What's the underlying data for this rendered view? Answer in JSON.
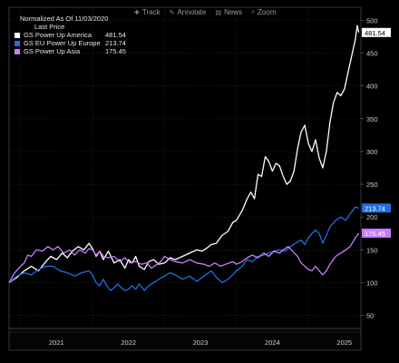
{
  "toolbar": {
    "items": [
      {
        "label": "Track",
        "icon": "crosshair-icon",
        "glyph": "✚"
      },
      {
        "label": "Annotate",
        "icon": "annotate-icon",
        "glyph": "✎"
      },
      {
        "label": "News",
        "icon": "news-icon",
        "glyph": "▤"
      },
      {
        "label": "Zoom",
        "icon": "zoom-icon",
        "glyph": "⌕"
      }
    ]
  },
  "colors": {
    "america": "#ffffff",
    "europe": "#1f6fe0",
    "asia": "#c77dff",
    "background": "#000000",
    "grid": "#3a3a3a",
    "axis_text": "#cfcfcf"
  },
  "chart_data": {
    "type": "line",
    "title": "Normalized As Of 11/03/2020",
    "subtitle": "Last Price",
    "legend_placement": "top-left",
    "grid": true,
    "y_axis_side": "right",
    "ylim": [
      30,
      520
    ],
    "yticks": [
      50,
      100,
      150,
      200,
      250,
      300,
      350,
      400,
      450,
      500
    ],
    "xlim": [
      2020.84,
      2025.73
    ],
    "x_ticks": [
      {
        "label": "2021",
        "year": 2021.5
      },
      {
        "label": "2022",
        "year": 2022.5
      },
      {
        "label": "2023",
        "year": 2023.5
      },
      {
        "label": "2024",
        "year": 2024.5
      },
      {
        "label": "2025",
        "year": 2025.5
      }
    ],
    "x_boundaries": [
      2021.0,
      2022.0,
      2023.0,
      2024.0,
      2025.0
    ],
    "series": [
      {
        "name": "GS Power Up America",
        "last": "481.54",
        "color": "#ffffff",
        "points": [
          [
            2020.84,
            100
          ],
          [
            2020.95,
            108
          ],
          [
            2021.05,
            118
          ],
          [
            2021.15,
            125
          ],
          [
            2021.25,
            118
          ],
          [
            2021.35,
            132
          ],
          [
            2021.42,
            140
          ],
          [
            2021.5,
            135
          ],
          [
            2021.58,
            145
          ],
          [
            2021.65,
            138
          ],
          [
            2021.72,
            148
          ],
          [
            2021.8,
            155
          ],
          [
            2021.88,
            150
          ],
          [
            2021.95,
            160
          ],
          [
            2022.0,
            152
          ],
          [
            2022.05,
            140
          ],
          [
            2022.1,
            148
          ],
          [
            2022.15,
            135
          ],
          [
            2022.22,
            148
          ],
          [
            2022.3,
            130
          ],
          [
            2022.38,
            135
          ],
          [
            2022.45,
            122
          ],
          [
            2022.5,
            135
          ],
          [
            2022.55,
            130
          ],
          [
            2022.6,
            140
          ],
          [
            2022.65,
            125
          ],
          [
            2022.72,
            120
          ],
          [
            2022.78,
            132
          ],
          [
            2022.85,
            135
          ],
          [
            2022.92,
            128
          ],
          [
            2023.0,
            130
          ],
          [
            2023.08,
            138
          ],
          [
            2023.15,
            135
          ],
          [
            2023.25,
            140
          ],
          [
            2023.35,
            145
          ],
          [
            2023.45,
            150
          ],
          [
            2023.52,
            148
          ],
          [
            2023.58,
            152
          ],
          [
            2023.65,
            158
          ],
          [
            2023.72,
            160
          ],
          [
            2023.8,
            172
          ],
          [
            2023.88,
            178
          ],
          [
            2023.95,
            192
          ],
          [
            2024.0,
            195
          ],
          [
            2024.08,
            210
          ],
          [
            2024.15,
            228
          ],
          [
            2024.2,
            238
          ],
          [
            2024.25,
            228
          ],
          [
            2024.3,
            265
          ],
          [
            2024.35,
            262
          ],
          [
            2024.4,
            292
          ],
          [
            2024.45,
            285
          ],
          [
            2024.5,
            270
          ],
          [
            2024.55,
            282
          ],
          [
            2024.6,
            278
          ],
          [
            2024.65,
            262
          ],
          [
            2024.7,
            250
          ],
          [
            2024.75,
            255
          ],
          [
            2024.8,
            270
          ],
          [
            2024.85,
            305
          ],
          [
            2024.9,
            330
          ],
          [
            2024.95,
            340
          ],
          [
            2025.0,
            312
          ],
          [
            2025.05,
            300
          ],
          [
            2025.1,
            318
          ],
          [
            2025.15,
            290
          ],
          [
            2025.2,
            275
          ],
          [
            2025.25,
            300
          ],
          [
            2025.3,
            345
          ],
          [
            2025.35,
            375
          ],
          [
            2025.4,
            390
          ],
          [
            2025.45,
            385
          ],
          [
            2025.5,
            395
          ],
          [
            2025.55,
            420
          ],
          [
            2025.6,
            445
          ],
          [
            2025.65,
            470
          ],
          [
            2025.68,
            492
          ],
          [
            2025.7,
            481.54
          ]
        ]
      },
      {
        "name": "GS EU Power Up Europe",
        "last": "213.74",
        "color": "#1f6fe0",
        "points": [
          [
            2020.84,
            100
          ],
          [
            2020.95,
            110
          ],
          [
            2021.05,
            115
          ],
          [
            2021.15,
            112
          ],
          [
            2021.25,
            120
          ],
          [
            2021.35,
            125
          ],
          [
            2021.45,
            125
          ],
          [
            2021.55,
            118
          ],
          [
            2021.65,
            115
          ],
          [
            2021.75,
            110
          ],
          [
            2021.85,
            115
          ],
          [
            2021.95,
            118
          ],
          [
            2022.0,
            112
          ],
          [
            2022.05,
            100
          ],
          [
            2022.1,
            95
          ],
          [
            2022.15,
            105
          ],
          [
            2022.2,
            95
          ],
          [
            2022.25,
            88
          ],
          [
            2022.3,
            92
          ],
          [
            2022.35,
            98
          ],
          [
            2022.4,
            92
          ],
          [
            2022.45,
            88
          ],
          [
            2022.5,
            90
          ],
          [
            2022.55,
            95
          ],
          [
            2022.6,
            90
          ],
          [
            2022.65,
            98
          ],
          [
            2022.72,
            88
          ],
          [
            2022.78,
            95
          ],
          [
            2022.85,
            100
          ],
          [
            2022.92,
            105
          ],
          [
            2023.0,
            110
          ],
          [
            2023.08,
            115
          ],
          [
            2023.15,
            112
          ],
          [
            2023.25,
            105
          ],
          [
            2023.35,
            110
          ],
          [
            2023.45,
            102
          ],
          [
            2023.55,
            110
          ],
          [
            2023.65,
            118
          ],
          [
            2023.72,
            108
          ],
          [
            2023.8,
            100
          ],
          [
            2023.88,
            105
          ],
          [
            2023.95,
            112
          ],
          [
            2024.0,
            118
          ],
          [
            2024.08,
            125
          ],
          [
            2024.15,
            135
          ],
          [
            2024.22,
            132
          ],
          [
            2024.3,
            140
          ],
          [
            2024.38,
            142
          ],
          [
            2024.45,
            145
          ],
          [
            2024.52,
            148
          ],
          [
            2024.6,
            150
          ],
          [
            2024.68,
            148
          ],
          [
            2024.75,
            155
          ],
          [
            2024.82,
            160
          ],
          [
            2024.9,
            165
          ],
          [
            2024.95,
            158
          ],
          [
            2025.0,
            168
          ],
          [
            2025.05,
            175
          ],
          [
            2025.1,
            180
          ],
          [
            2025.15,
            175
          ],
          [
            2025.2,
            160
          ],
          [
            2025.25,
            172
          ],
          [
            2025.3,
            185
          ],
          [
            2025.38,
            195
          ],
          [
            2025.45,
            200
          ],
          [
            2025.52,
            195
          ],
          [
            2025.58,
            205
          ],
          [
            2025.65,
            215
          ],
          [
            2025.7,
            213.74
          ]
        ]
      },
      {
        "name": "GS Power Up Asia",
        "last": "175.45",
        "color": "#c77dff",
        "points": [
          [
            2020.84,
            100
          ],
          [
            2020.92,
            115
          ],
          [
            2021.0,
            125
          ],
          [
            2021.05,
            130
          ],
          [
            2021.1,
            142
          ],
          [
            2021.15,
            140
          ],
          [
            2021.22,
            150
          ],
          [
            2021.3,
            148
          ],
          [
            2021.38,
            155
          ],
          [
            2021.45,
            150
          ],
          [
            2021.52,
            155
          ],
          [
            2021.6,
            145
          ],
          [
            2021.68,
            150
          ],
          [
            2021.75,
            142
          ],
          [
            2021.82,
            150
          ],
          [
            2021.9,
            145
          ],
          [
            2021.95,
            152
          ],
          [
            2022.0,
            150
          ],
          [
            2022.05,
            142
          ],
          [
            2022.1,
            148
          ],
          [
            2022.15,
            140
          ],
          [
            2022.22,
            138
          ],
          [
            2022.3,
            140
          ],
          [
            2022.38,
            132
          ],
          [
            2022.45,
            138
          ],
          [
            2022.52,
            130
          ],
          [
            2022.6,
            132
          ],
          [
            2022.68,
            128
          ],
          [
            2022.75,
            130
          ],
          [
            2022.82,
            122
          ],
          [
            2022.9,
            128
          ],
          [
            2022.95,
            132
          ],
          [
            2023.0,
            140
          ],
          [
            2023.08,
            135
          ],
          [
            2023.15,
            132
          ],
          [
            2023.25,
            130
          ],
          [
            2023.35,
            135
          ],
          [
            2023.45,
            130
          ],
          [
            2023.55,
            128
          ],
          [
            2023.62,
            125
          ],
          [
            2023.7,
            130
          ],
          [
            2023.78,
            125
          ],
          [
            2023.85,
            128
          ],
          [
            2023.95,
            132
          ],
          [
            2024.0,
            128
          ],
          [
            2024.08,
            132
          ],
          [
            2024.15,
            138
          ],
          [
            2024.22,
            142
          ],
          [
            2024.3,
            138
          ],
          [
            2024.38,
            145
          ],
          [
            2024.45,
            140
          ],
          [
            2024.52,
            148
          ],
          [
            2024.6,
            145
          ],
          [
            2024.65,
            150
          ],
          [
            2024.72,
            155
          ],
          [
            2024.78,
            148
          ],
          [
            2024.85,
            140
          ],
          [
            2024.9,
            130
          ],
          [
            2024.95,
            125
          ],
          [
            2025.0,
            120
          ],
          [
            2025.05,
            118
          ],
          [
            2025.1,
            125
          ],
          [
            2025.15,
            118
          ],
          [
            2025.2,
            112
          ],
          [
            2025.25,
            118
          ],
          [
            2025.3,
            128
          ],
          [
            2025.38,
            140
          ],
          [
            2025.45,
            145
          ],
          [
            2025.52,
            150
          ],
          [
            2025.58,
            155
          ],
          [
            2025.65,
            168
          ],
          [
            2025.7,
            175.45
          ]
        ]
      }
    ]
  }
}
